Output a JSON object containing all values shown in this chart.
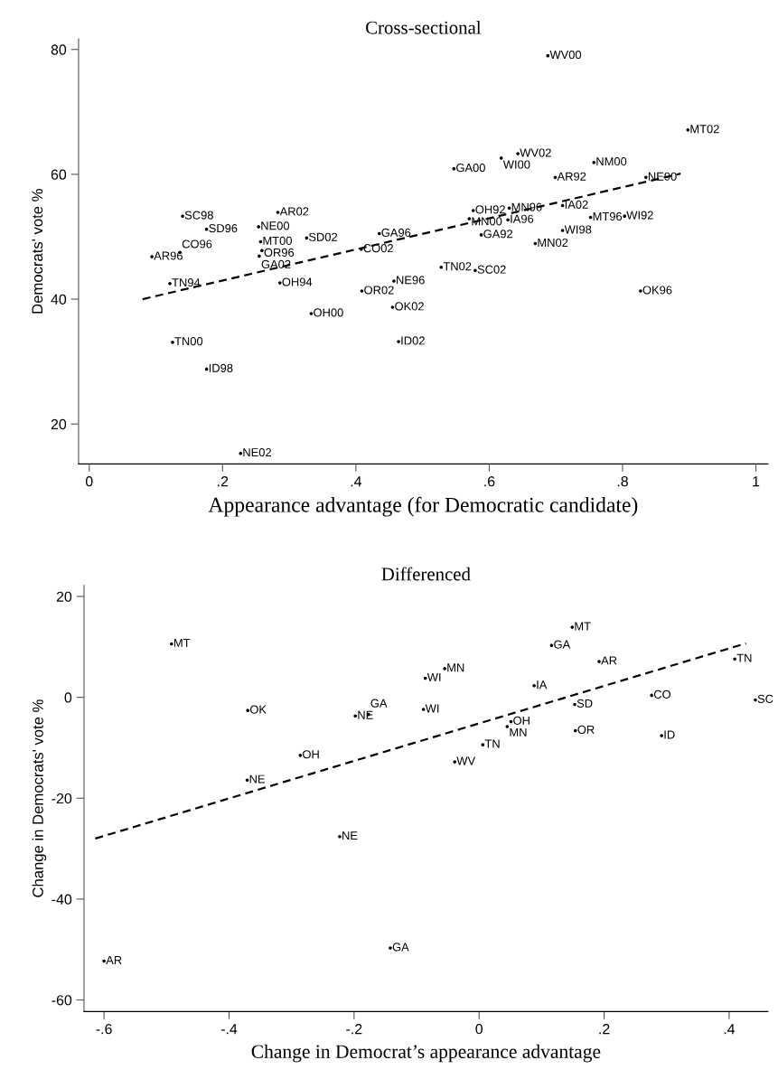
{
  "chart_data": [
    {
      "type": "scatter",
      "title": "Cross-sectional",
      "xlabel": "Appearance advantage (for Democratic candidate)",
      "ylabel": "Democrats' vote %",
      "xlim": [
        -0.016,
        1.018
      ],
      "ylim": [
        13.6,
        81.7
      ],
      "xticks": [
        0,
        {
          "value": 0.2,
          "label": ".2"
        },
        {
          "value": 0.4,
          "label": ".4"
        },
        {
          "value": 0.6,
          "label": ".6"
        },
        {
          "value": 0.8,
          "label": ".8"
        },
        1
      ],
      "yticks": [
        20,
        40,
        60,
        80
      ],
      "grid": false,
      "series": [
        {
          "marker": "circle",
          "color": "#000000",
          "x": [
            0.14,
            0.176,
            0.094,
            0.136,
            0.121,
            0.125,
            0.176,
            0.283,
            0.254,
            0.257,
            0.259,
            0.255,
            0.326,
            0.286,
            0.333,
            0.435,
            0.408,
            0.457,
            0.409,
            0.455,
            0.464,
            0.227,
            0.688,
            0.898,
            0.643,
            0.618,
            0.547,
            0.757,
            0.699,
            0.835,
            0.576,
            0.63,
            0.71,
            0.57,
            0.628,
            0.752,
            0.803,
            0.588,
            0.71,
            0.669,
            0.528,
            0.579,
            0.827
          ],
          "values": [
            53.3,
            51.2,
            46.8,
            47.5,
            42.5,
            33.1,
            28.8,
            53.9,
            51.6,
            49.2,
            47.8,
            46.9,
            49.8,
            42.6,
            37.7,
            50.5,
            48.0,
            42.9,
            41.3,
            38.7,
            33.2,
            15.3,
            79.0,
            67.1,
            63.3,
            62.6,
            60.9,
            61.9,
            59.5,
            59.5,
            54.2,
            54.6,
            55.0,
            52.9,
            52.7,
            53.1,
            53.3,
            50.3,
            51.0,
            48.9,
            45.1,
            44.6,
            41.3
          ],
          "value_labels": [
            "SC98",
            "SD96",
            "AR96",
            "CO96",
            "TN94",
            "TN00",
            "ID98",
            "AR02",
            "NE00",
            "MT00",
            "OR96",
            "GA02",
            "SD02",
            "OH94",
            "OH00",
            "GA96",
            "CO02",
            "NE96",
            "OR02",
            "OK02",
            "ID02",
            "NE02",
            "WV00",
            "MT02",
            "WV02",
            "WI00",
            "GA00",
            "NM00",
            "AR92",
            "NE90",
            "OH92",
            "MN96",
            "IA02",
            "MN00",
            "IA96",
            "MT96",
            "WI92",
            "GA92",
            "WI98",
            "MN02",
            "TN02",
            "SC02",
            "OK96"
          ]
        },
        {
          "type": "line",
          "line_style": "dashed",
          "color": "#000000",
          "x": [
            0.08,
            0.887
          ],
          "values": [
            40.0,
            60.1
          ]
        }
      ]
    },
    {
      "type": "scatter",
      "title": "Differenced",
      "xlabel": "Change in Democrat’s appearance advantage",
      "ylabel": "Change in Democrats' vote %",
      "xlim": [
        -0.632,
        0.462
      ],
      "ylim": [
        -62.3,
        22.2
      ],
      "xticks": [
        {
          "value": -0.6,
          "label": "-.6"
        },
        {
          "value": -0.4,
          "label": "-.4"
        },
        {
          "value": -0.2,
          "label": "-.2"
        },
        0,
        {
          "value": 0.2,
          "label": ".2"
        },
        {
          "value": 0.4,
          "label": ".4"
        }
      ],
      "yticks": [
        -60,
        -40,
        -20,
        0,
        20
      ],
      "grid": false,
      "series": [
        {
          "marker": "circle",
          "color": "#000000",
          "x": [
            -0.492,
            -0.37,
            -0.198,
            -0.177,
            -0.286,
            0.149,
            0.116,
            0.192,
            0.409,
            -0.055,
            -0.086,
            0.088,
            0.276,
            0.442,
            0.153,
            -0.089,
            0.051,
            0.045,
            0.154,
            0.292,
            0.006,
            -0.039,
            -0.371,
            -0.223,
            -0.142,
            -0.6
          ],
          "values": [
            10.6,
            -2.6,
            -3.7,
            -3.4,
            -11.5,
            13.9,
            10.3,
            7.1,
            7.6,
            5.7,
            3.8,
            2.3,
            0.4,
            -0.5,
            -1.4,
            -2.4,
            -4.8,
            -5.8,
            -6.6,
            -7.6,
            -9.4,
            -12.8,
            -16.4,
            -27.6,
            -49.7,
            -52.3
          ],
          "value_labels": [
            "MT",
            "OK",
            "NE",
            "GA",
            "OH",
            "MT",
            "GA",
            "AR",
            "TN",
            "MN",
            "WI",
            "IA",
            "CO",
            "SC",
            "SD",
            "WI",
            "OH",
            "MN",
            "OR",
            "ID",
            "TN",
            "WV",
            "NE",
            "NE",
            "GA",
            "AR"
          ]
        },
        {
          "type": "line",
          "line_style": "dashed",
          "color": "#000000",
          "x": [
            -0.614,
            0.427
          ],
          "values": [
            -28.0,
            10.7
          ]
        }
      ]
    }
  ]
}
